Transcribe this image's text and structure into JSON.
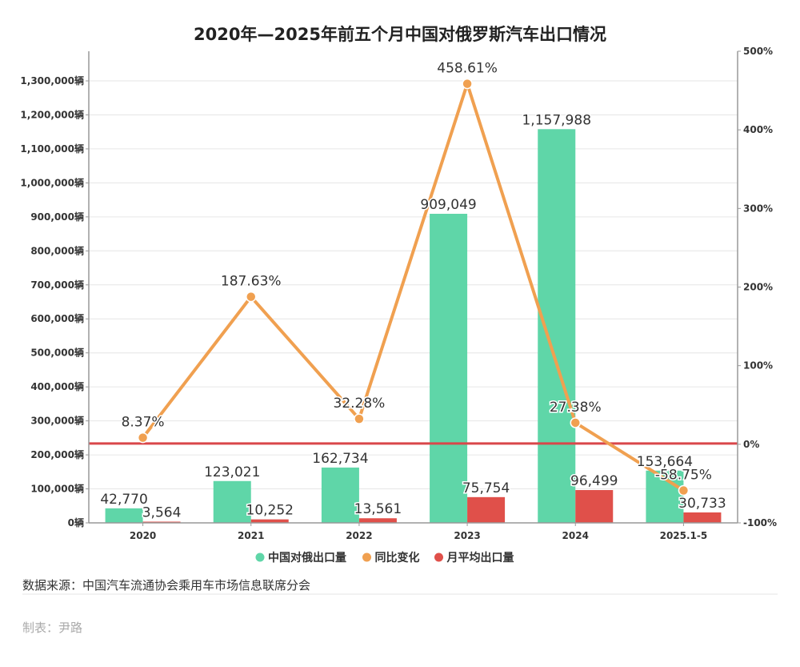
{
  "chart_data": {
    "type": "bar+line",
    "title": "2020年—2025年前五个月中国对俄罗斯汽车出口情况",
    "categories": [
      "2020",
      "2021",
      "2022",
      "2023",
      "2024",
      "2025.1-5"
    ],
    "series": [
      {
        "name": "中国对俄出口量",
        "type": "bar",
        "axis": "left",
        "color": "#5fd6a8",
        "values": [
          42770,
          123021,
          162734,
          909049,
          1157988,
          153664
        ],
        "labels": [
          "42,770",
          "123,021",
          "162,734",
          "909,049",
          "1,157,988",
          "153,664"
        ]
      },
      {
        "name": "同比变化",
        "type": "line",
        "axis": "right",
        "color": "#f0a050",
        "values": [
          8.37,
          187.63,
          32.28,
          458.61,
          27.38,
          -58.75
        ],
        "labels": [
          "8.37%",
          "187.63%",
          "32.28%",
          "458.61%",
          "27.38%",
          "-58.75%"
        ]
      },
      {
        "name": "月平均出口量",
        "type": "bar",
        "axis": "left",
        "color": "#e0504a",
        "values": [
          3564,
          10252,
          13561,
          75754,
          96499,
          30733
        ],
        "labels": [
          "3,564",
          "10,252",
          "13,561",
          "75,754",
          "96,499",
          "30,733"
        ]
      }
    ],
    "left_axis": {
      "ylim": [
        0,
        1300000
      ],
      "ticks": [
        "0辆",
        "100,000辆",
        "200,000辆",
        "300,000辆",
        "400,000辆",
        "500,000辆",
        "600,000辆",
        "700,000辆",
        "800,000辆",
        "900,000辆",
        "1,000,000辆",
        "1,100,000辆",
        "1,200,000辆",
        "1,300,000辆"
      ]
    },
    "right_axis": {
      "ylim": [
        -100,
        500
      ],
      "ticks": [
        "-100%",
        "0%",
        "100%",
        "200%",
        "300%",
        "400%",
        "500%"
      ]
    },
    "reference_line": {
      "value": 0,
      "axis": "right",
      "color": "#d9474a"
    },
    "grid": true,
    "legend": "bottom"
  },
  "footer": {
    "source": "数据来源：中国汽车流通协会乘用车市场信息联席分会",
    "author": "制表：尹路"
  }
}
